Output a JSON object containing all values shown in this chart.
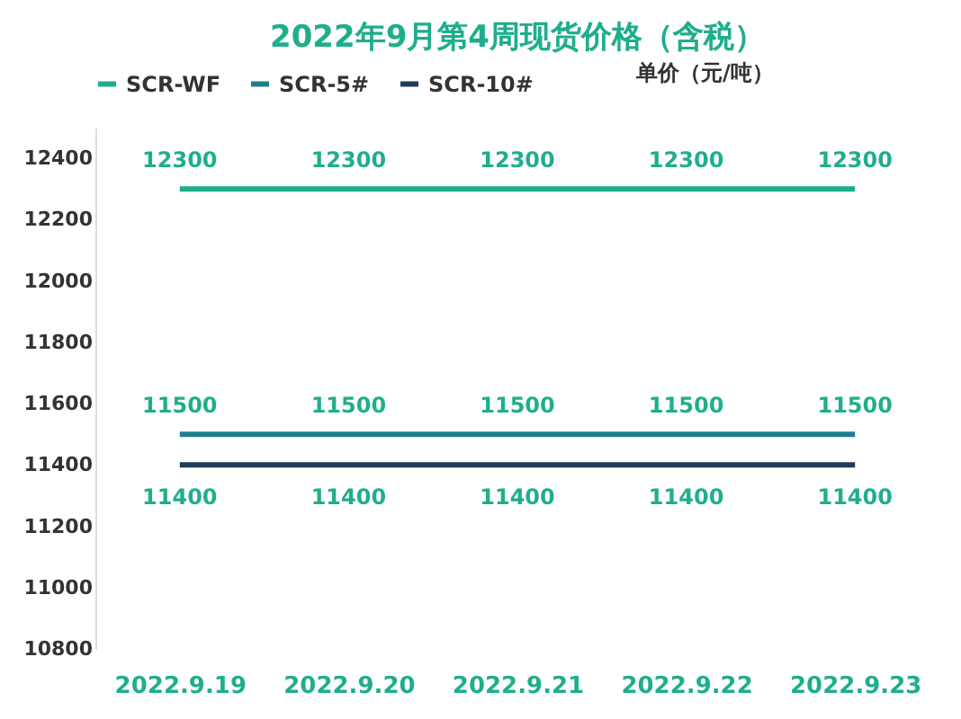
{
  "chart_data": {
    "type": "line",
    "title": "2022年9月第4周现货价格（含税）",
    "ylabel": "单价（元/吨）",
    "categories": [
      "2022.9.19",
      "2022.9.20",
      "2022.9.21",
      "2022.9.22",
      "2022.9.23"
    ],
    "series": [
      {
        "name": "SCR-WF",
        "color": "#1fae8c",
        "values": [
          12300,
          12300,
          12300,
          12300,
          12300
        ]
      },
      {
        "name": "SCR-5#",
        "color": "#1d7f8e",
        "values": [
          11500,
          11500,
          11500,
          11500,
          11500
        ]
      },
      {
        "name": "SCR-10#",
        "color": "#213b5c",
        "values": [
          11400,
          11400,
          11400,
          11400,
          11400
        ]
      }
    ],
    "ylim": [
      10800,
      12500
    ],
    "yticks": [
      10800,
      11000,
      11200,
      11400,
      11600,
      11800,
      12000,
      12200,
      12400
    ],
    "grid": false,
    "legend": "top",
    "marker": "none",
    "line_style": "solid",
    "data_labels": true
  }
}
